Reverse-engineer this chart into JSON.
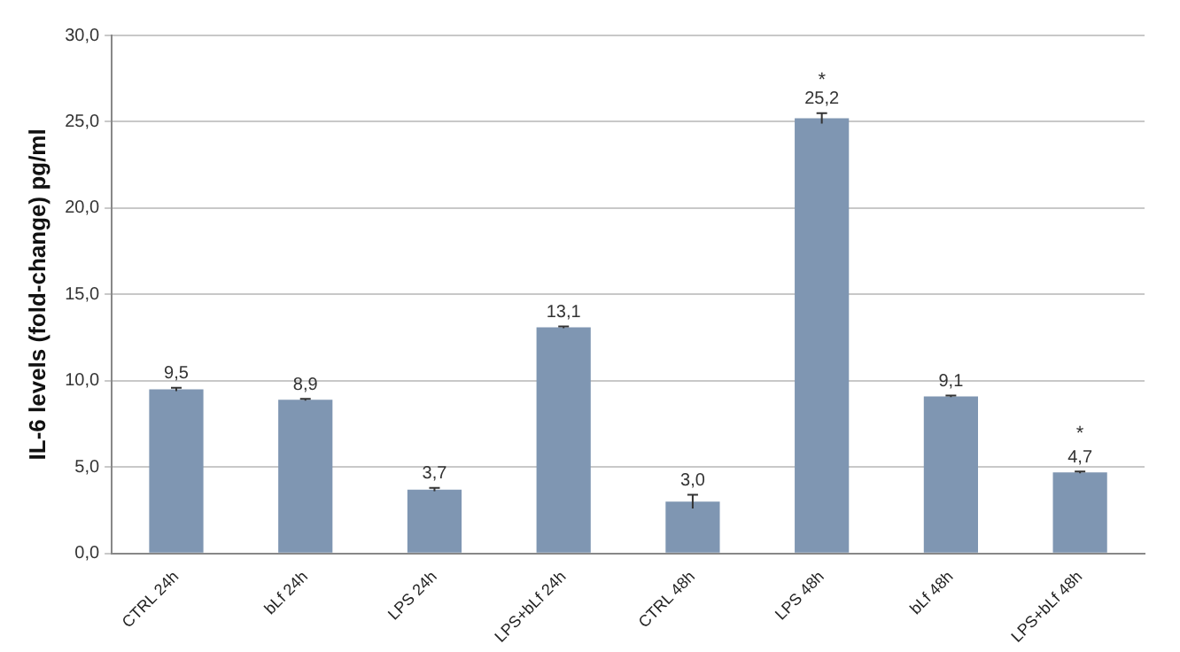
{
  "chart_data": {
    "type": "bar",
    "ylabel": "IL-6 levels (fold-change) pg/ml",
    "categories": [
      "CTRL 24h",
      "bLf 24h",
      "LPS 24h",
      "LPS+bLf 24h",
      "CTRL 48h",
      "LPS 48h",
      "bLf 48h",
      "LPS+bLf 48h"
    ],
    "values": [
      9.5,
      8.9,
      3.7,
      13.1,
      3.0,
      25.2,
      9.1,
      4.7
    ],
    "value_labels": [
      "9,5",
      "8,9",
      "3,7",
      "13,1",
      "3,0",
      "25,2",
      "9,1",
      "4,7"
    ],
    "errors": [
      0.1,
      0.05,
      0.1,
      0.05,
      0.4,
      0.3,
      0.05,
      0.05
    ],
    "color": "#7f96b2",
    "ylim": [
      0,
      30
    ],
    "yticks": [
      {
        "value": 0,
        "label": "0,0"
      },
      {
        "value": 5,
        "label": "5,0"
      },
      {
        "value": 10,
        "label": "10,0"
      },
      {
        "value": 15,
        "label": "15,0"
      },
      {
        "value": 20,
        "label": "20,0"
      },
      {
        "value": 25,
        "label": "25,0"
      },
      {
        "value": 30,
        "label": "30,0"
      }
    ],
    "grid": "y",
    "legend": false,
    "annotations": [
      {
        "text": "*",
        "x": "LPS 48h",
        "y": 25.2
      },
      {
        "text": "*",
        "x": "LPS+bLf 48h",
        "y": 4.7
      }
    ]
  }
}
